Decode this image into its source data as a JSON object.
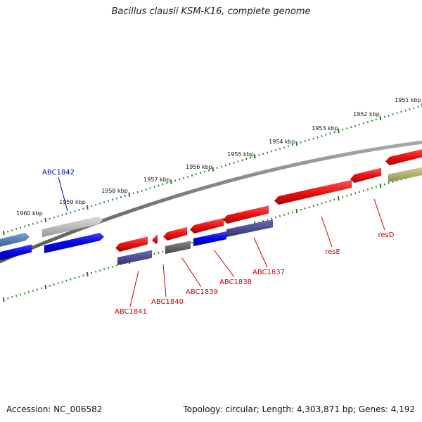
{
  "header": {
    "title": "Bacillus clausii KSM-K16, complete genome"
  },
  "footer": {
    "accession": "Accession: NC_006582",
    "summary": "Topology: circular; Length: 4,303,871 bp; Genes: 4,192"
  },
  "colors": {
    "backbone": "#777777",
    "tick": "#1a7a1a",
    "forward_gene": "#ee1111",
    "reverse_gene": "#0000e8",
    "grey_gene": "#bbbbbb",
    "purple_gene": "#44448a",
    "dark_grey_gene": "#666666",
    "olive_gene": "#b8b870",
    "steel_blue_gene": "#4d6fa8",
    "label_red": "#cc0000",
    "label_blue": "#0000bb"
  },
  "kbp_ticks": [
    "1951 kbp",
    "1952 kbp",
    "1953 kbp",
    "1954 kbp",
    "1955 kbp",
    "1956 kbp",
    "1957 kbp",
    "1958 kbp",
    "1959 kbp",
    "1960 kbp"
  ],
  "gene_labels": [
    "ABC1842",
    "resD",
    "resE",
    "ABC1837",
    "ABC1838",
    "ABC1839",
    "ABC1840",
    "ABC1841"
  ]
}
